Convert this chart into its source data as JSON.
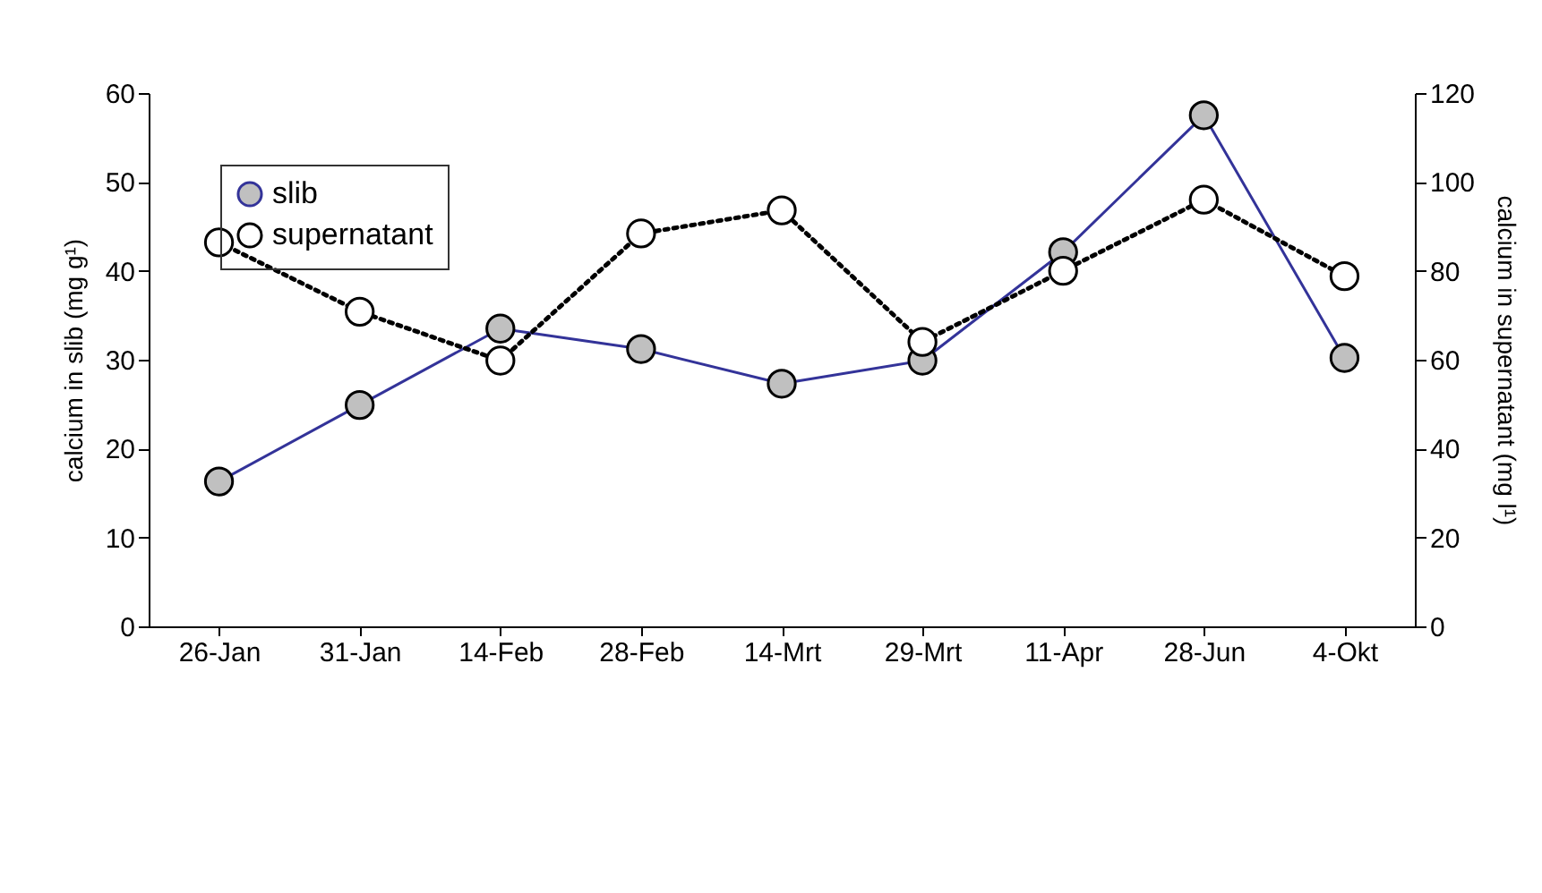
{
  "chart_data": {
    "type": "line",
    "ylabel": "calcium in slib (mg g¹)",
    "y2label": "calcium in supernatant (mg l¹)",
    "categories": [
      "26-Jan",
      "31-Jan",
      "14-Feb",
      "28-Feb",
      "14-Mrt",
      "29-Mrt",
      "11-Apr",
      "28-Jun",
      "4-Okt"
    ],
    "series": [
      {
        "name": "slib",
        "color": "#333399",
        "line_style": "solid",
        "values": [
          16.3,
          24.9,
          33.5,
          31.2,
          27.3,
          29.9,
          42.1,
          57.5,
          30.2
        ]
      },
      {
        "name": "supernatant",
        "color": "#000000",
        "line_style": "dotted",
        "axis": "y2",
        "values": [
          86.4,
          70.8,
          59.8,
          88.4,
          93.6,
          64,
          80,
          96,
          78.8
        ]
      }
    ],
    "ylim": [
      0,
      60
    ],
    "yticks": [
      0,
      10,
      20,
      30,
      40,
      50,
      60
    ],
    "y2lim": [
      0,
      120
    ],
    "y2ticks": [
      0,
      20,
      40,
      60,
      80,
      100,
      120
    ],
    "marker": "circle",
    "legend": "top left",
    "grid": false
  }
}
